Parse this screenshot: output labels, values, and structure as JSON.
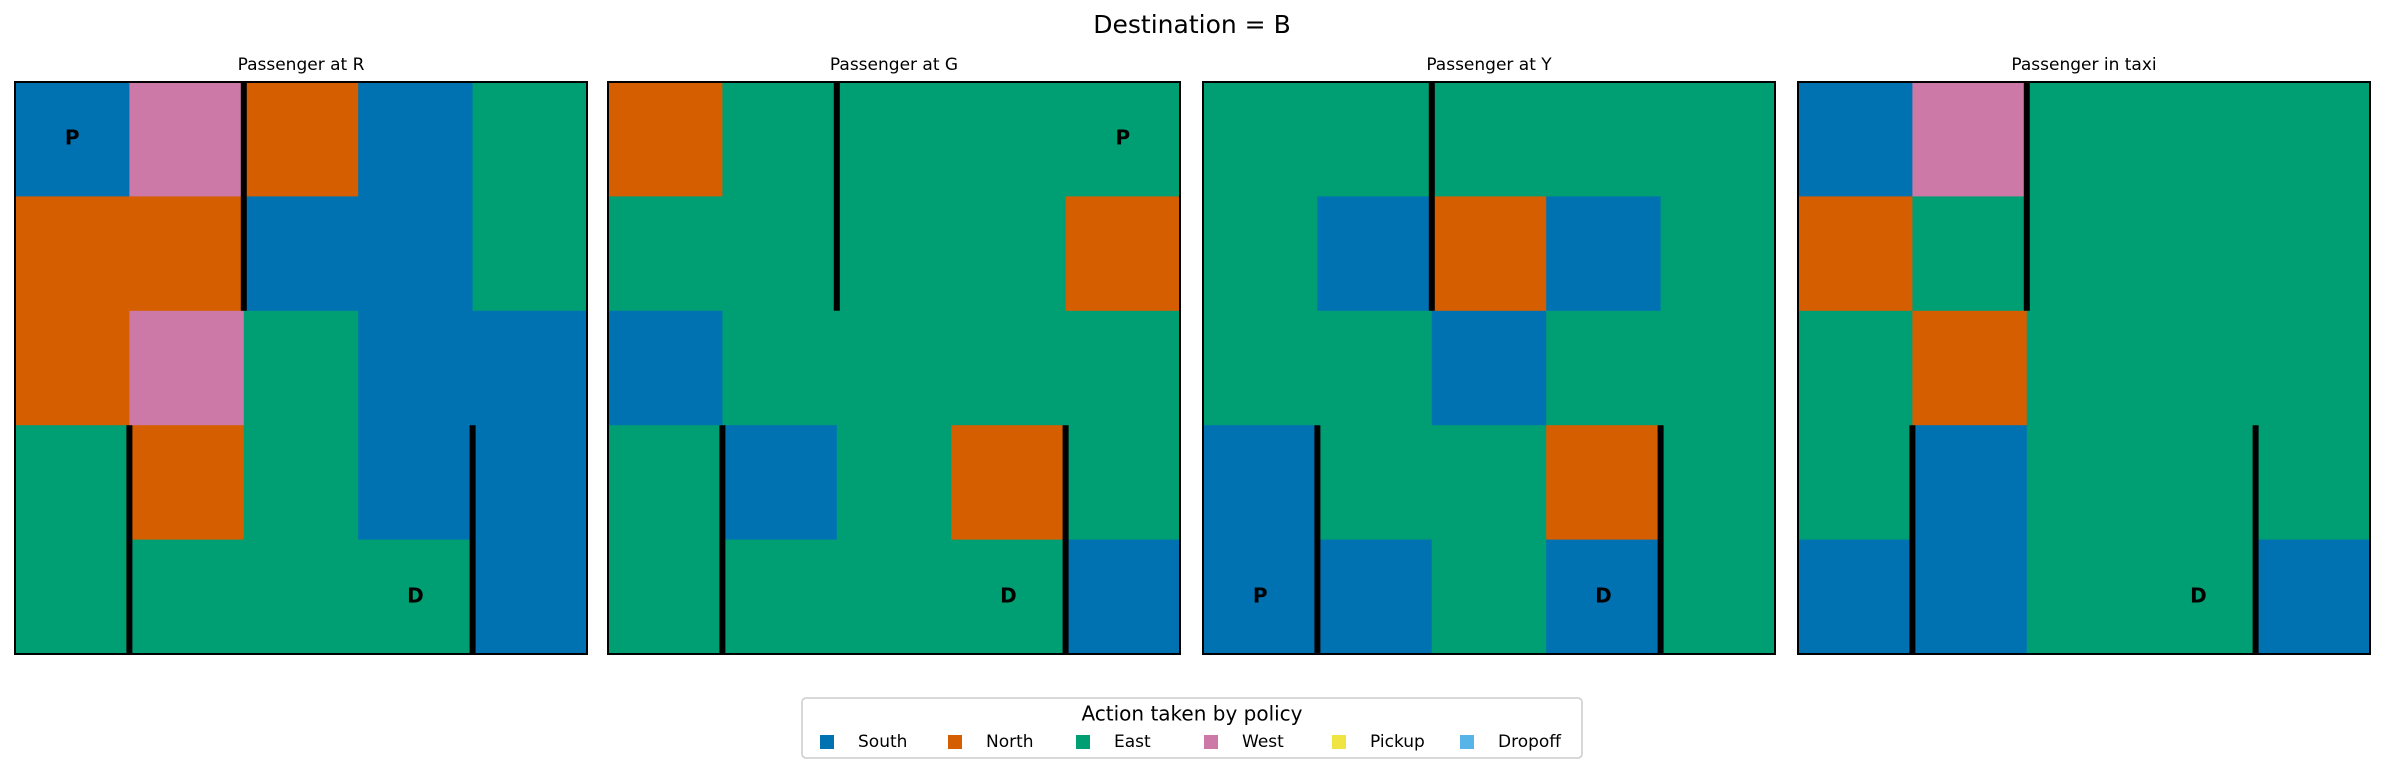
{
  "chart_data": {
    "type": "grid",
    "title": "Destination = B",
    "legend": {
      "title": "Action taken by policy",
      "entries": [
        {
          "name": "South",
          "color": "#0072b2"
        },
        {
          "name": "North",
          "color": "#d55e00"
        },
        {
          "name": "East",
          "color": "#009e73"
        },
        {
          "name": "West",
          "color": "#cc79a7"
        },
        {
          "name": "Pickup",
          "color": "#f0e442"
        },
        {
          "name": "Dropoff",
          "color": "#56b4e9"
        }
      ]
    },
    "panels": [
      {
        "title": "Passenger at R",
        "cells": [
          [
            0,
            3,
            1,
            0,
            2
          ],
          [
            1,
            1,
            0,
            0,
            2
          ],
          [
            1,
            3,
            2,
            0,
            0
          ],
          [
            2,
            1,
            2,
            0,
            0
          ],
          [
            2,
            2,
            2,
            2,
            0
          ]
        ],
        "cell_labels": [
          [
            "P",
            null,
            null,
            null,
            null
          ],
          [
            null,
            null,
            null,
            null,
            null
          ],
          [
            null,
            null,
            null,
            null,
            null
          ],
          [
            null,
            null,
            null,
            null,
            null
          ],
          [
            null,
            null,
            null,
            "D",
            null
          ]
        ]
      },
      {
        "title": "Passenger at G",
        "cells": [
          [
            1,
            2,
            2,
            2,
            2
          ],
          [
            2,
            2,
            2,
            2,
            1
          ],
          [
            0,
            2,
            2,
            2,
            2
          ],
          [
            2,
            0,
            2,
            1,
            2
          ],
          [
            2,
            2,
            2,
            2,
            0
          ]
        ],
        "cell_labels": [
          [
            null,
            null,
            null,
            null,
            "P"
          ],
          [
            null,
            null,
            null,
            null,
            null
          ],
          [
            null,
            null,
            null,
            null,
            null
          ],
          [
            null,
            null,
            null,
            null,
            null
          ],
          [
            null,
            null,
            null,
            "D",
            null
          ]
        ]
      },
      {
        "title": "Passenger at Y",
        "cells": [
          [
            2,
            2,
            2,
            2,
            2
          ],
          [
            2,
            0,
            1,
            0,
            2
          ],
          [
            2,
            2,
            0,
            2,
            2
          ],
          [
            0,
            2,
            2,
            1,
            2
          ],
          [
            0,
            0,
            2,
            0,
            2
          ]
        ],
        "cell_labels": [
          [
            null,
            null,
            null,
            null,
            null
          ],
          [
            null,
            null,
            null,
            null,
            null
          ],
          [
            null,
            null,
            null,
            null,
            null
          ],
          [
            null,
            null,
            null,
            null,
            null
          ],
          [
            "P",
            null,
            null,
            "D",
            null
          ]
        ]
      },
      {
        "title": "Passenger in taxi",
        "cells": [
          [
            0,
            3,
            2,
            2,
            2
          ],
          [
            1,
            2,
            2,
            2,
            2
          ],
          [
            2,
            1,
            2,
            2,
            2
          ],
          [
            2,
            0,
            2,
            2,
            2
          ],
          [
            0,
            0,
            2,
            2,
            0
          ]
        ],
        "cell_labels": [
          [
            null,
            null,
            null,
            null,
            null
          ],
          [
            null,
            null,
            null,
            null,
            null
          ],
          [
            null,
            null,
            null,
            null,
            null
          ],
          [
            null,
            null,
            null,
            null,
            null
          ],
          [
            null,
            null,
            null,
            "D",
            null
          ]
        ]
      }
    ]
  }
}
